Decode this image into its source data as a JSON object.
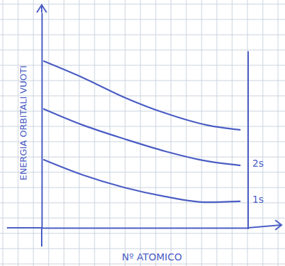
{
  "chart_data": {
    "type": "line",
    "x_label": "Nº ATOMICO",
    "y_label": "ENERGIA ORBITALI VUOTI",
    "x": [
      0.1,
      2,
      4,
      6,
      8,
      9.6
    ],
    "series": [
      {
        "color": "#4a5cc4",
        "values": [
          7.74,
          6.97,
          6.06,
          5.32,
          4.77,
          4.55
        ]
      },
      {
        "name": "2s",
        "color": "#4a5cc4",
        "values": [
          5.52,
          4.77,
          4.13,
          3.55,
          3.1,
          2.9
        ]
      },
      {
        "name": "1s",
        "color": "#4a5cc4",
        "values": [
          3.16,
          2.45,
          1.87,
          1.45,
          1.19,
          1.23
        ]
      }
    ],
    "xlim": [
      0,
      10
    ],
    "ylim": [
      0,
      10
    ],
    "tick_labels": false,
    "grid": false
  }
}
